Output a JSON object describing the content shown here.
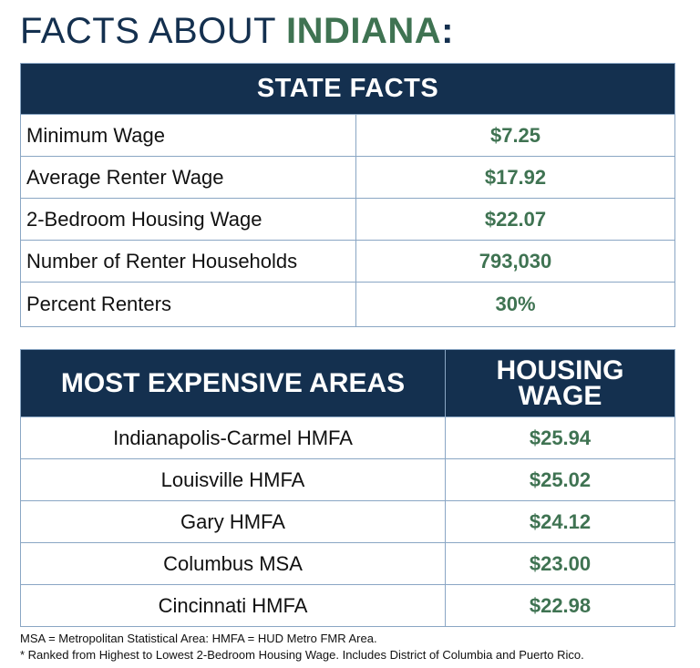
{
  "title": {
    "prefix": "FACTS ABOUT ",
    "state": "INDIANA",
    "suffix": ":"
  },
  "state_facts": {
    "header": "STATE FACTS",
    "rows": [
      {
        "label": "Minimum Wage",
        "value": "$7.25"
      },
      {
        "label": "Average Renter Wage",
        "value": "$17.92"
      },
      {
        "label": "2-Bedroom Housing Wage",
        "value": "$22.07"
      },
      {
        "label": "Number of Renter Households",
        "value": "793,030"
      },
      {
        "label": "Percent Renters",
        "value": "30%"
      }
    ]
  },
  "expensive_areas": {
    "header_area": "MOST EXPENSIVE AREAS",
    "header_wage": "HOUSING WAGE",
    "rows": [
      {
        "area": "Indianapolis-Carmel HMFA",
        "wage": "$25.94"
      },
      {
        "area": "Louisville HMFA",
        "wage": "$25.02"
      },
      {
        "area": "Gary HMFA",
        "wage": "$24.12"
      },
      {
        "area": "Columbus MSA",
        "wage": "$23.00"
      },
      {
        "area": "Cincinnati HMFA",
        "wage": "$22.98"
      }
    ]
  },
  "notes": [
    "MSA = Metropolitan Statistical Area: HMFA = HUD Metro FMR Area.",
    "* Ranked from Highest to Lowest 2-Bedroom Housing Wage. Includes District of Columbia and Puerto Rico."
  ],
  "colors": {
    "navy": "#14304f",
    "green": "#3f7352",
    "border": "#8aa6c4"
  }
}
